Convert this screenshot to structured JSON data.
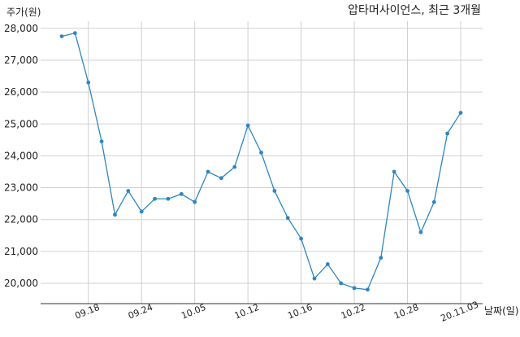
{
  "chart_data": {
    "type": "line",
    "title": "압타머사이언스, 최근 3개월",
    "xlabel": "날짜(일)",
    "ylabel": "주가(원)",
    "ylim": [
      19400,
      28200
    ],
    "y_ticks": [
      "20,000",
      "21,000",
      "22,000",
      "23,000",
      "24,000",
      "25,000",
      "26,000",
      "27,000",
      "28,000"
    ],
    "y_tick_values": [
      20000,
      21000,
      22000,
      23000,
      24000,
      25000,
      26000,
      27000,
      28000
    ],
    "x_ticks": [
      "09.18",
      "09.24",
      "10.05",
      "10.12",
      "10.16",
      "10.22",
      "10.28",
      "20.11.03"
    ],
    "x_tick_index": [
      2,
      6,
      10,
      14,
      18,
      22,
      26,
      30
    ],
    "grid": true,
    "series": [
      {
        "color": "#2e86c1",
        "values": [
          27750,
          27850,
          26300,
          24450,
          22150,
          22900,
          22250,
          22650,
          22650,
          22800,
          22550,
          23500,
          23300,
          23650,
          24950,
          24100,
          22900,
          22050,
          21400,
          20150,
          20600,
          20000,
          19850,
          19800,
          20800,
          23500,
          22900,
          21600,
          22550,
          24700,
          25350
        ]
      }
    ]
  }
}
